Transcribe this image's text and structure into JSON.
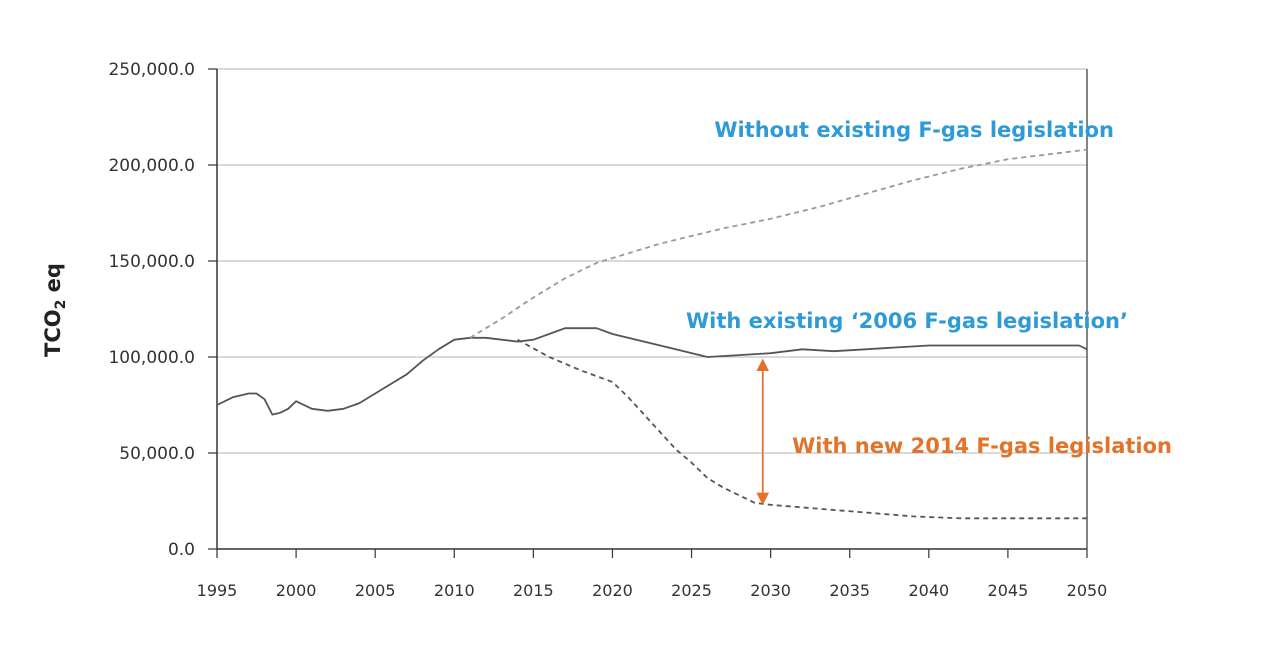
{
  "chart_data": {
    "type": "line",
    "title": "",
    "xlabel": "",
    "ylabel": {
      "main": "TCO",
      "sub": "2",
      "suffix": " eq"
    },
    "xlim": [
      1995,
      2050
    ],
    "ylim": [
      0,
      250000
    ],
    "grid": "horizontal",
    "x_ticks": [
      "1995",
      "2000",
      "2005",
      "2010",
      "2015",
      "2020",
      "2025",
      "2030",
      "2035",
      "2040",
      "2045",
      "2050"
    ],
    "y_ticks": [
      {
        "value": 0,
        "label": "0.0"
      },
      {
        "value": 50000,
        "label": "50,000.0"
      },
      {
        "value": 100000,
        "label": "100,000.0"
      },
      {
        "value": 150000,
        "label": "150,000.0"
      },
      {
        "value": 200000,
        "label": "200,000.0"
      },
      {
        "value": 250000,
        "label": "250,000.0"
      }
    ],
    "series": [
      {
        "key": "historical_2006",
        "style": "solid",
        "color": "#555555",
        "points": [
          [
            1995,
            75000
          ],
          [
            1996,
            79000
          ],
          [
            1997,
            81000
          ],
          [
            1997.5,
            81000
          ],
          [
            1998,
            78000
          ],
          [
            1998.5,
            70000
          ],
          [
            1999,
            71000
          ],
          [
            1999.5,
            73000
          ],
          [
            2000,
            77000
          ],
          [
            2001,
            73000
          ],
          [
            2002,
            72000
          ],
          [
            2003,
            73000
          ],
          [
            2004,
            76000
          ],
          [
            2005,
            81000
          ],
          [
            2006,
            86000
          ],
          [
            2007,
            91000
          ],
          [
            2008,
            98000
          ],
          [
            2009,
            104000
          ],
          [
            2010,
            109000
          ],
          [
            2011,
            110000
          ],
          [
            2012,
            110000
          ],
          [
            2013,
            109000
          ],
          [
            2014,
            108000
          ],
          [
            2015,
            109000
          ],
          [
            2016,
            112000
          ],
          [
            2017,
            115000
          ],
          [
            2018,
            115000
          ],
          [
            2019,
            115000
          ],
          [
            2020,
            112000
          ],
          [
            2022,
            108000
          ],
          [
            2024,
            104000
          ],
          [
            2026,
            100000
          ],
          [
            2028,
            101000
          ],
          [
            2030,
            102000
          ],
          [
            2032,
            104000
          ],
          [
            2034,
            103000
          ],
          [
            2036,
            104000
          ],
          [
            2038,
            105000
          ],
          [
            2040,
            106000
          ],
          [
            2042,
            106000
          ],
          [
            2044,
            106000
          ],
          [
            2046,
            106000
          ],
          [
            2048,
            106000
          ],
          [
            2049.5,
            106000
          ],
          [
            2050,
            104000
          ]
        ]
      },
      {
        "key": "without_legislation",
        "style": "dashed",
        "color": "#999999",
        "points": [
          [
            2011,
            110000
          ],
          [
            2013,
            120000
          ],
          [
            2015,
            131000
          ],
          [
            2017,
            141000
          ],
          [
            2019,
            149000
          ],
          [
            2021,
            154000
          ],
          [
            2023,
            159000
          ],
          [
            2025,
            163000
          ],
          [
            2027,
            167000
          ],
          [
            2030,
            172000
          ],
          [
            2033,
            178000
          ],
          [
            2036,
            185000
          ],
          [
            2039,
            192000
          ],
          [
            2042,
            198000
          ],
          [
            2045,
            203000
          ],
          [
            2048,
            206000
          ],
          [
            2050,
            208000
          ]
        ]
      },
      {
        "key": "with_new_2014",
        "style": "dashed",
        "color": "#555555",
        "points": [
          [
            2014,
            109000
          ],
          [
            2016,
            100000
          ],
          [
            2018,
            93000
          ],
          [
            2020,
            87000
          ],
          [
            2021,
            79000
          ],
          [
            2022,
            70000
          ],
          [
            2023,
            61000
          ],
          [
            2024,
            52000
          ],
          [
            2025,
            45000
          ],
          [
            2026,
            37000
          ],
          [
            2027,
            32000
          ],
          [
            2028,
            28000
          ],
          [
            2029,
            24000
          ],
          [
            2030,
            23000
          ],
          [
            2033,
            21000
          ],
          [
            2036,
            19000
          ],
          [
            2039,
            17000
          ],
          [
            2042,
            16000
          ],
          [
            2045,
            16000
          ],
          [
            2048,
            16000
          ],
          [
            2050,
            16000
          ]
        ]
      }
    ],
    "annotations": [
      {
        "key": "without",
        "text": "Without existing F-gas legislation",
        "color": "#2e9ad6"
      },
      {
        "key": "with2006",
        "text": "With existing ‘2006 F-gas legislation’",
        "color": "#2e9ad6"
      },
      {
        "key": "new2014",
        "text": "With new 2014 F-gas legislation",
        "color": "#e3732a"
      }
    ],
    "arrow": {
      "x": 2029.5,
      "y_from": 22000,
      "y_to": 100000,
      "color": "#e3732a"
    }
  }
}
